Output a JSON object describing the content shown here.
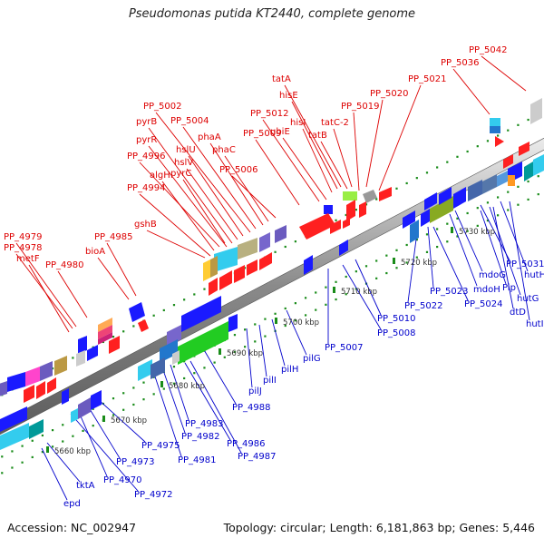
{
  "title": "Pseudomonas putida KT2440, complete genome",
  "footer": {
    "accession": "Accession: NC_002947",
    "summary": "Topology: circular; Length: 6,181,863 bp; Genes: 5,446"
  },
  "colors": {
    "top_label": "#dd0000",
    "bottom_label": "#0000cc",
    "forward_gene": "#ff2020",
    "reverse_gene": "#1a1aff",
    "backbone": "#909090",
    "tick": "#1a8c1a"
  },
  "scale_ticks": [
    "5660 kbp",
    "5670 kbp",
    "5680 kbp",
    "5690 kbp",
    "5700 kbp",
    "5710 kbp",
    "5720 kbp",
    "5730 kbp"
  ],
  "top_labels": [
    "PP_5042",
    "PP_5036",
    "PP_5021",
    "PP_5020",
    "PP_5019",
    "tatC-2",
    "tatB",
    "tatA",
    "hisE",
    "hisI",
    "ubiE",
    "PP_5012",
    "PP_5009",
    "PP_5006",
    "phaC",
    "phaA",
    "PP_5004",
    "PP_5002",
    "hslU",
    "hslV",
    "pyrB",
    "pyrR",
    "pyrC",
    "PP_4996",
    "algH",
    "PP_4994",
    "gshB",
    "PP_4985",
    "bioA",
    "PP_4980",
    "PP_4979",
    "PP_4978",
    "metF"
  ],
  "bottom_labels": [
    "PP_5031",
    "hutH",
    "hutG",
    "hutI",
    "Pip",
    "mdoG",
    "mdoH",
    "dtD",
    "PP_5024",
    "PP_5023",
    "PP_5022",
    "PP_5010",
    "PP_5008",
    "PP_5007",
    "pilG",
    "pilH",
    "pilI",
    "pilJ",
    "PP_4988",
    "PP_4987",
    "PP_4986",
    "PP_4983",
    "PP_4982",
    "PP_4981",
    "PP_4975",
    "PP_4973",
    "PP_4970",
    "PP_4972",
    "tktA",
    "epd"
  ]
}
